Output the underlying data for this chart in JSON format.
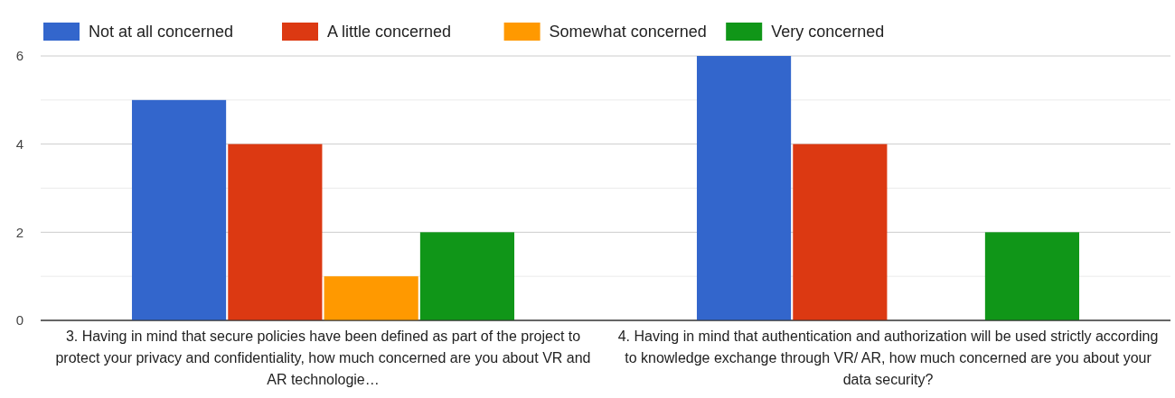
{
  "chart_data": {
    "type": "bar",
    "categories": [
      "3. Having in mind that secure policies have been defined as part of the project to protect your privacy and confidentiality, how much concerned are you about VR and AR technologie…",
      "4. Having in mind that authentication and authorization will be used strictly according to knowledge exchange through VR/ AR, how much concerned are you about your data security?"
    ],
    "series": [
      {
        "name": "Not at all concerned",
        "color": "#3366cc",
        "values": [
          5,
          6
        ]
      },
      {
        "name": "A little concerned",
        "color": "#dc3912",
        "values": [
          4,
          4
        ]
      },
      {
        "name": "Somewhat concerned",
        "color": "#ff9900",
        "values": [
          1,
          0
        ]
      },
      {
        "name": "Very concerned",
        "color": "#109618",
        "values": [
          2,
          2
        ]
      }
    ],
    "ylim": [
      0,
      6
    ],
    "yticks": [
      0,
      {
        "value": 1,
        "label": null
      },
      2,
      {
        "value": 3,
        "label": null
      },
      4,
      {
        "value": 5,
        "label": null
      },
      6
    ],
    "grid": true,
    "legend": "top left"
  }
}
